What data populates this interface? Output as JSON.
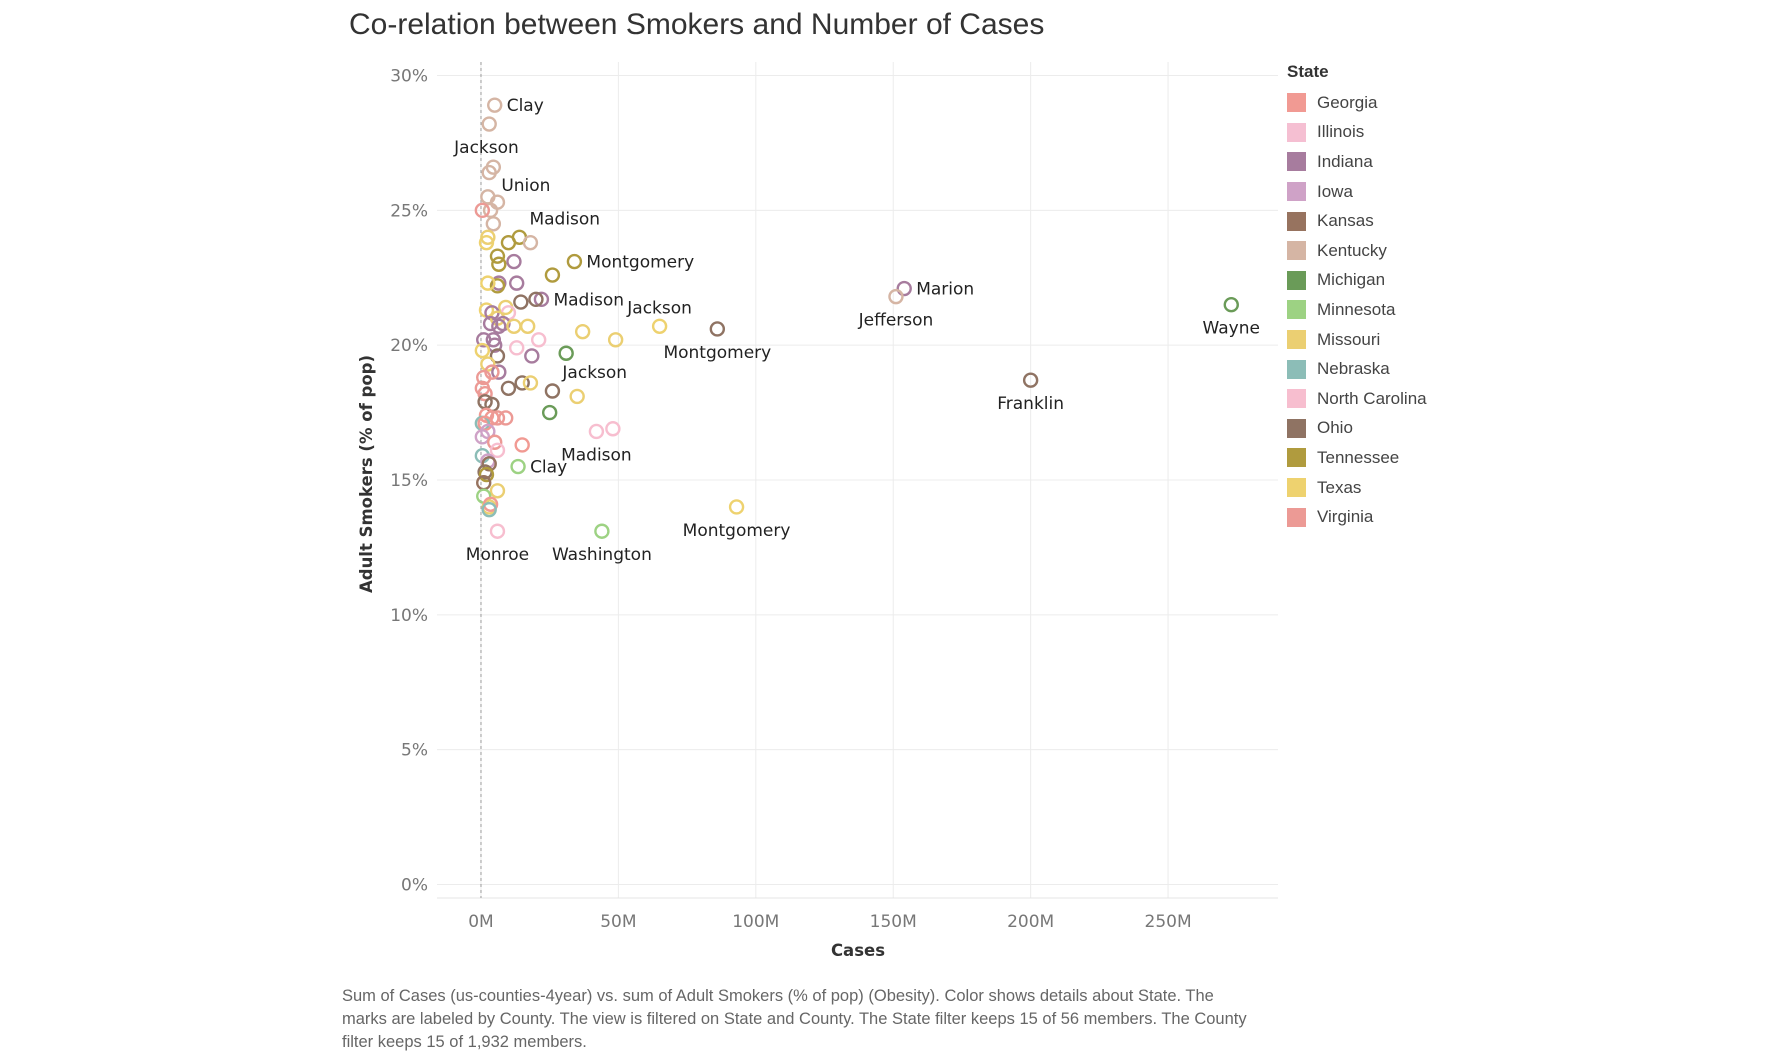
{
  "chart_data": {
    "type": "scatter",
    "title": "Co-relation between Smokers and Number of Cases",
    "xlabel": "Cases",
    "ylabel": "Adult Smokers (% of pop)",
    "xlim": [
      -16000000,
      290000000
    ],
    "ylim": [
      -0.5,
      30.5
    ],
    "xticks": [
      0,
      50000000,
      100000000,
      150000000,
      200000000,
      250000000
    ],
    "xtick_labels": [
      "0M",
      "50M",
      "100M",
      "150M",
      "200M",
      "250M"
    ],
    "yticks": [
      0,
      5,
      10,
      15,
      20,
      25,
      30
    ],
    "ytick_labels": [
      "0%",
      "5%",
      "10%",
      "15%",
      "20%",
      "25%",
      "30%"
    ],
    "grid": true,
    "legend_position": "right",
    "legend_title": "State",
    "states": [
      {
        "name": "Georgia",
        "color": "#F19A93"
      },
      {
        "name": "Illinois",
        "color": "#F5BFD2"
      },
      {
        "name": "Indiana",
        "color": "#A77C9E"
      },
      {
        "name": "Iowa",
        "color": "#CFA2C7"
      },
      {
        "name": "Kansas",
        "color": "#97735F"
      },
      {
        "name": "Kentucky",
        "color": "#D5B5A4"
      },
      {
        "name": "Michigan",
        "color": "#6A9B58"
      },
      {
        "name": "Minnesota",
        "color": "#9DD283"
      },
      {
        "name": "Missouri",
        "color": "#EBCF72"
      },
      {
        "name": "Nebraska",
        "color": "#8CBDB7"
      },
      {
        "name": "North Carolina",
        "color": "#F7BECF"
      },
      {
        "name": "Ohio",
        "color": "#8F7363"
      },
      {
        "name": "Tennessee",
        "color": "#B09B3E"
      },
      {
        "name": "Texas",
        "color": "#EED26F"
      },
      {
        "name": "Virginia",
        "color": "#EC9A95"
      }
    ],
    "points": [
      {
        "state": "Kentucky",
        "x": 5000000,
        "y": 28.9,
        "label": "Clay"
      },
      {
        "state": "Kentucky",
        "x": 3000000,
        "y": 28.2,
        "label": "Jackson"
      },
      {
        "state": "Kentucky",
        "x": 4500000,
        "y": 26.6,
        "label": "Union"
      },
      {
        "state": "Kentucky",
        "x": 3000000,
        "y": 26.4
      },
      {
        "state": "Kentucky",
        "x": 2500000,
        "y": 25.5
      },
      {
        "state": "Kentucky",
        "x": 6000000,
        "y": 25.3
      },
      {
        "state": "Kentucky",
        "x": 3500000,
        "y": 25.0
      },
      {
        "state": "Virginia",
        "x": 500000,
        "y": 25.0
      },
      {
        "state": "Kentucky",
        "x": 4500000,
        "y": 24.5
      },
      {
        "state": "Tennessee",
        "x": 14000000,
        "y": 24.0,
        "label": "Madison"
      },
      {
        "state": "Kentucky",
        "x": 18000000,
        "y": 23.8
      },
      {
        "state": "Tennessee",
        "x": 10000000,
        "y": 23.8
      },
      {
        "state": "Texas",
        "x": 2000000,
        "y": 23.8
      },
      {
        "state": "Missouri",
        "x": 2500000,
        "y": 24.0
      },
      {
        "state": "Tennessee",
        "x": 6000000,
        "y": 23.3
      },
      {
        "state": "Tennessee",
        "x": 6500000,
        "y": 23.0
      },
      {
        "state": "Indiana",
        "x": 12000000,
        "y": 23.1
      },
      {
        "state": "Tennessee",
        "x": 34000000,
        "y": 23.1,
        "label": "Montgomery"
      },
      {
        "state": "Tennessee",
        "x": 26000000,
        "y": 22.6
      },
      {
        "state": "Indiana",
        "x": 6500000,
        "y": 22.3
      },
      {
        "state": "Indiana",
        "x": 13000000,
        "y": 22.3
      },
      {
        "state": "Tennessee",
        "x": 6000000,
        "y": 22.2
      },
      {
        "state": "Texas",
        "x": 2500000,
        "y": 22.3
      },
      {
        "state": "Indiana",
        "x": 154000000,
        "y": 22.1,
        "label": "Marion"
      },
      {
        "state": "Kentucky",
        "x": 151000000,
        "y": 21.8,
        "label": "Jefferson"
      },
      {
        "state": "Indiana",
        "x": 22000000,
        "y": 21.7,
        "label": "Madison"
      },
      {
        "state": "Ohio",
        "x": 20000000,
        "y": 21.7
      },
      {
        "state": "Ohio",
        "x": 14500000,
        "y": 21.6
      },
      {
        "state": "Michigan",
        "x": 273000000,
        "y": 21.5,
        "label": "Wayne"
      },
      {
        "state": "Missouri",
        "x": 9000000,
        "y": 21.4
      },
      {
        "state": "Texas",
        "x": 2000000,
        "y": 21.3
      },
      {
        "state": "Indiana",
        "x": 4000000,
        "y": 21.2
      },
      {
        "state": "North Carolina",
        "x": 10000000,
        "y": 21.2
      },
      {
        "state": "Missouri",
        "x": 6000000,
        "y": 21.0
      },
      {
        "state": "Indiana",
        "x": 3500000,
        "y": 20.8
      },
      {
        "state": "Indiana",
        "x": 8000000,
        "y": 20.8
      },
      {
        "state": "Indiana",
        "x": 6500000,
        "y": 20.7
      },
      {
        "state": "Missouri",
        "x": 12000000,
        "y": 20.7
      },
      {
        "state": "Missouri",
        "x": 17000000,
        "y": 20.7
      },
      {
        "state": "Texas",
        "x": 65000000,
        "y": 20.7,
        "label": "Jackson"
      },
      {
        "state": "Ohio",
        "x": 86000000,
        "y": 20.6,
        "label": "Montgomery"
      },
      {
        "state": "Missouri",
        "x": 37000000,
        "y": 20.5
      },
      {
        "state": "Indiana",
        "x": 4500000,
        "y": 20.2
      },
      {
        "state": "Indiana",
        "x": 1000000,
        "y": 20.2
      },
      {
        "state": "Indiana",
        "x": 5000000,
        "y": 20.0
      },
      {
        "state": "North Carolina",
        "x": 21000000,
        "y": 20.2
      },
      {
        "state": "Missouri",
        "x": 49000000,
        "y": 20.2
      },
      {
        "state": "North Carolina",
        "x": 13000000,
        "y": 19.9
      },
      {
        "state": "Texas",
        "x": 500000,
        "y": 19.8
      },
      {
        "state": "Michigan",
        "x": 31000000,
        "y": 19.7
      },
      {
        "state": "Ohio",
        "x": 6000000,
        "y": 19.6
      },
      {
        "state": "Indiana",
        "x": 18500000,
        "y": 19.6
      },
      {
        "state": "Missouri",
        "x": 2500000,
        "y": 19.3
      },
      {
        "state": "Indiana",
        "x": 6500000,
        "y": 19.0
      },
      {
        "state": "Virginia",
        "x": 4000000,
        "y": 19.0
      },
      {
        "state": "Virginia",
        "x": 1000000,
        "y": 18.8
      },
      {
        "state": "Ohio",
        "x": 15000000,
        "y": 18.6
      },
      {
        "state": "Missouri",
        "x": 18000000,
        "y": 18.6
      },
      {
        "state": "Ohio",
        "x": 10000000,
        "y": 18.4
      },
      {
        "state": "Ohio",
        "x": 26000000,
        "y": 18.3,
        "label": "Jackson"
      },
      {
        "state": "Virginia",
        "x": 500000,
        "y": 18.4
      },
      {
        "state": "Virginia",
        "x": 1500000,
        "y": 18.2
      },
      {
        "state": "Missouri",
        "x": 35000000,
        "y": 18.1
      },
      {
        "state": "Ohio",
        "x": 1500000,
        "y": 17.9
      },
      {
        "state": "Ohio",
        "x": 4000000,
        "y": 17.8
      },
      {
        "state": "Michigan",
        "x": 25000000,
        "y": 17.5
      },
      {
        "state": "Georgia",
        "x": 2000000,
        "y": 17.4
      },
      {
        "state": "Georgia",
        "x": 4000000,
        "y": 17.3
      },
      {
        "state": "Virginia",
        "x": 6000000,
        "y": 17.3
      },
      {
        "state": "Virginia",
        "x": 9000000,
        "y": 17.3
      },
      {
        "state": "Nebraska",
        "x": 500000,
        "y": 17.1
      },
      {
        "state": "Georgia",
        "x": 1500000,
        "y": 17.1
      },
      {
        "state": "Iowa",
        "x": 2500000,
        "y": 16.8
      },
      {
        "state": "North Carolina",
        "x": 42000000,
        "y": 16.8,
        "label": "Madison"
      },
      {
        "state": "North Carolina",
        "x": 48000000,
        "y": 16.9
      },
      {
        "state": "Iowa",
        "x": 500000,
        "y": 16.6
      },
      {
        "state": "Virginia",
        "x": 5000000,
        "y": 16.4
      },
      {
        "state": "Georgia",
        "x": 15000000,
        "y": 16.3
      },
      {
        "state": "North Carolina",
        "x": 6000000,
        "y": 16.1
      },
      {
        "state": "Nebraska",
        "x": 500000,
        "y": 15.9
      },
      {
        "state": "Iowa",
        "x": 2500000,
        "y": 15.7
      },
      {
        "state": "Kansas",
        "x": 3000000,
        "y": 15.6
      },
      {
        "state": "Minnesota",
        "x": 13500000,
        "y": 15.5,
        "label": "Clay"
      },
      {
        "state": "Ohio",
        "x": 1500000,
        "y": 15.3
      },
      {
        "state": "Tennessee",
        "x": 2000000,
        "y": 15.2
      },
      {
        "state": "Kansas",
        "x": 1000000,
        "y": 14.9
      },
      {
        "state": "Missouri",
        "x": 6000000,
        "y": 14.6
      },
      {
        "state": "Minnesota",
        "x": 1000000,
        "y": 14.4
      },
      {
        "state": "Missouri",
        "x": 3000000,
        "y": 14.0
      },
      {
        "state": "Georgia",
        "x": 3500000,
        "y": 14.1
      },
      {
        "state": "Nebraska",
        "x": 3000000,
        "y": 13.9
      },
      {
        "state": "Texas",
        "x": 93000000,
        "y": 14.0,
        "label": "Montgomery"
      },
      {
        "state": "North Carolina",
        "x": 6000000,
        "y": 13.1,
        "label": "Monroe"
      },
      {
        "state": "Minnesota",
        "x": 44000000,
        "y": 13.1,
        "label": "Washington"
      }
    ],
    "labels": [
      {
        "text": "Clay",
        "x": 5000000,
        "y": 28.9,
        "pos": "right"
      },
      {
        "text": "Jackson",
        "x": 2000000,
        "y": 28.2,
        "pos": "below"
      },
      {
        "text": "Union",
        "x": 4500000,
        "y": 26.6,
        "pos": "right-below"
      },
      {
        "text": "Madison",
        "x": 14000000,
        "y": 24.0,
        "pos": "right-above"
      },
      {
        "text": "Montgomery",
        "x": 34000000,
        "y": 23.1,
        "pos": "right"
      },
      {
        "text": "Marion",
        "x": 154000000,
        "y": 22.1,
        "pos": "right"
      },
      {
        "text": "Jefferson",
        "x": 151000000,
        "y": 21.8,
        "pos": "below"
      },
      {
        "text": "Madison",
        "x": 22000000,
        "y": 21.7,
        "pos": "right"
      },
      {
        "text": "Jackson",
        "x": 65000000,
        "y": 20.7,
        "pos": "above"
      },
      {
        "text": "Montgomery",
        "x": 86000000,
        "y": 20.6,
        "pos": "below"
      },
      {
        "text": "Wayne",
        "x": 273000000,
        "y": 21.5,
        "pos": "below"
      },
      {
        "text": "Jackson",
        "x": 26000000,
        "y": 18.3,
        "pos": "right-above"
      },
      {
        "text": "Franklin",
        "x": 200000000,
        "y": 18.7,
        "pos": "below"
      },
      {
        "text": "Madison",
        "x": 42000000,
        "y": 16.8,
        "pos": "below"
      },
      {
        "text": "Clay",
        "x": 13500000,
        "y": 15.5,
        "pos": "right"
      },
      {
        "text": "Montgomery",
        "x": 93000000,
        "y": 14.0,
        "pos": "below"
      },
      {
        "text": "Monroe",
        "x": 6000000,
        "y": 13.1,
        "pos": "below"
      },
      {
        "text": "Washington",
        "x": 44000000,
        "y": 13.1,
        "pos": "below"
      }
    ],
    "extra_points": [
      {
        "state": "Ohio",
        "x": 200000000,
        "y": 18.7,
        "label": "Franklin"
      }
    ]
  },
  "caption": "Sum of Cases (us-counties-4year) vs. sum of Adult Smokers (% of pop) (Obesity).  Color shows details about State.  The marks are labeled by County. The view is filtered on State and County. The State filter keeps 15 of 56 members. The County filter keeps 15 of 1,932 members."
}
